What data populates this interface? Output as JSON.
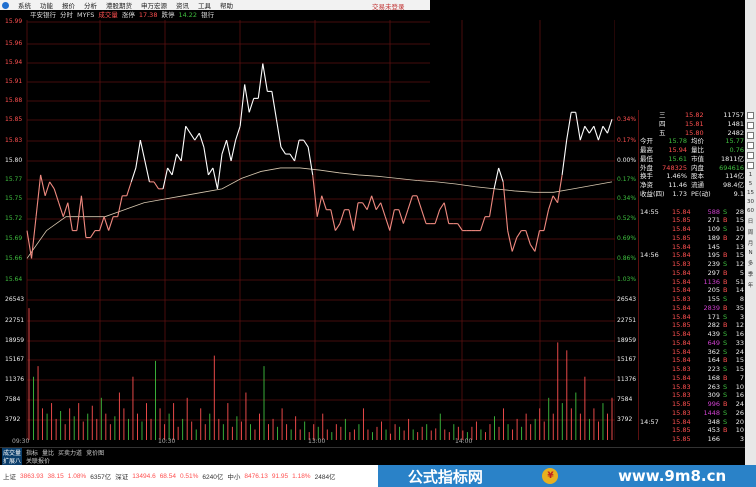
{
  "menu": {
    "items": [
      "系统",
      "功能",
      "报价",
      "分析",
      "港股期货",
      "申万宏源",
      "资讯",
      "工具",
      "帮助"
    ],
    "account_status": "交易未登录"
  },
  "header": {
    "stock": "平安银行",
    "mode": "分时",
    "indicator": "MYFS",
    "vol_label": "成交量",
    "limit_up_label": "涨停",
    "limit_up": "17.38",
    "limit_down_label": "跌停",
    "limit_down": "14.22",
    "sector": "银行"
  },
  "colors": {
    "up": "#ff5050",
    "down": "#3fbf3f",
    "grid": "#5a1010",
    "price_line_up": "#ffffff",
    "price_line_down": "#f08a80",
    "avg_line": "#d8c8b0"
  },
  "axis": {
    "price_labels": [
      {
        "t": "15.99",
        "c": "red"
      },
      {
        "t": "15.96",
        "c": "red"
      },
      {
        "t": "15.94",
        "c": "red"
      },
      {
        "t": "15.91",
        "c": "red"
      },
      {
        "t": "15.88",
        "c": "red"
      },
      {
        "t": "15.85",
        "c": "red"
      },
      {
        "t": "15.83",
        "c": "red"
      },
      {
        "t": "15.80",
        "c": "wht"
      },
      {
        "t": "15.77",
        "c": "green"
      },
      {
        "t": "15.75",
        "c": "green"
      },
      {
        "t": "15.72",
        "c": "green"
      },
      {
        "t": "15.69",
        "c": "green"
      },
      {
        "t": "15.66",
        "c": "green"
      },
      {
        "t": "15.64",
        "c": "green"
      }
    ],
    "pct_labels": [
      {
        "t": "0.34%",
        "c": "red"
      },
      {
        "t": "0.17%",
        "c": "red"
      },
      {
        "t": "0.00%",
        "c": "wht"
      },
      {
        "t": "0.17%",
        "c": "green"
      },
      {
        "t": "0.34%",
        "c": "green"
      },
      {
        "t": "0.52%",
        "c": "green"
      },
      {
        "t": "0.69%",
        "c": "green"
      },
      {
        "t": "0.86%",
        "c": "green"
      },
      {
        "t": "1.03%",
        "c": "green"
      }
    ],
    "vol_labels": [
      "26543",
      "22751",
      "18959",
      "15167",
      "11376",
      "7584",
      "3792"
    ],
    "time_labels": [
      "09:30",
      "10:30",
      "13:00",
      "14:00"
    ]
  },
  "chart_data": {
    "type": "line",
    "prev_close": 15.8,
    "price": [
      15.7,
      15.66,
      15.72,
      15.78,
      15.75,
      15.77,
      15.76,
      15.74,
      15.72,
      15.74,
      15.7,
      15.7,
      15.75,
      15.69,
      15.69,
      15.7,
      15.7,
      15.72,
      15.7,
      15.72,
      15.72,
      15.75,
      15.75,
      15.77,
      15.79,
      15.83,
      15.8,
      15.77,
      15.77,
      15.76,
      15.76,
      15.79,
      15.78,
      15.81,
      15.8,
      15.85,
      15.84,
      15.83,
      15.84,
      15.82,
      15.78,
      15.79,
      15.76,
      15.81,
      15.83,
      15.8,
      15.83,
      15.85,
      15.91,
      15.87,
      15.89,
      15.89,
      15.94,
      15.9,
      15.9,
      15.86,
      15.82,
      15.81,
      15.81,
      15.8,
      15.83,
      15.83,
      15.82,
      15.78,
      15.72,
      15.75,
      15.73,
      15.73,
      15.7,
      15.71,
      15.73,
      15.73,
      15.7,
      15.74,
      15.74,
      15.73,
      15.75,
      15.73,
      15.74,
      15.72,
      15.7,
      15.73,
      15.73,
      15.71,
      15.73,
      15.75,
      15.75,
      15.73,
      15.71,
      15.71,
      15.71,
      15.73,
      15.74,
      15.71,
      15.71,
      15.71,
      15.7,
      15.7,
      15.7,
      15.7,
      15.7,
      15.72,
      15.72,
      15.76,
      15.79,
      15.77,
      15.7,
      15.67,
      15.69,
      15.7,
      15.7,
      15.68,
      15.67,
      15.7,
      15.7,
      15.73,
      15.75,
      15.74,
      15.78,
      15.83,
      15.87,
      15.87,
      15.83,
      15.85,
      15.84,
      15.85,
      15.83,
      15.85,
      15.84,
      15.86
    ],
    "avg_price": [
      15.66,
      15.7,
      15.72,
      15.72,
      15.72,
      15.73,
      15.74,
      15.745,
      15.75,
      15.755,
      15.76,
      15.775,
      15.785,
      15.79,
      15.79,
      15.787,
      15.783,
      15.78,
      15.778,
      15.775,
      15.772,
      15.77,
      15.767,
      15.763,
      15.76,
      15.757,
      15.755,
      15.755,
      15.76,
      15.765,
      15.77
    ],
    "volume": [
      25000,
      12000,
      14000,
      6000,
      5000,
      7000,
      4000,
      5500,
      3000,
      6000,
      4500,
      7000,
      3500,
      5000,
      6500,
      4000,
      8000,
      5000,
      3000,
      4500,
      9000,
      6000,
      4000,
      12000,
      5000,
      3500,
      7000,
      4000,
      15000,
      6000,
      3000,
      5000,
      7000,
      2500,
      4000,
      8000,
      3500,
      2000,
      6000,
      3000,
      5000,
      16000,
      4000,
      3000,
      7000,
      2500,
      4500,
      3500,
      9000,
      3000,
      2000,
      5000,
      14000,
      3000,
      4000,
      2500,
      6000,
      3000,
      2000,
      4500,
      2000,
      3500,
      1500,
      3000,
      2500,
      5000,
      2000,
      1500,
      3000,
      2500,
      4000,
      1500,
      2000,
      3000,
      6000,
      2000,
      1500,
      2500,
      3500,
      2000,
      1200,
      3000,
      2500,
      1800,
      4000,
      2000,
      1500,
      2500,
      3000,
      1800,
      2200,
      5000,
      2000,
      1500,
      3000,
      2500,
      1800,
      1500,
      2500,
      3500,
      2000,
      1500,
      3000,
      4500,
      2500,
      6000,
      3000,
      2000,
      4000,
      2500,
      5000,
      3000,
      4000,
      6000,
      3500,
      8000,
      5000,
      18500,
      7000,
      17000,
      6000,
      9000,
      5000,
      12000,
      4000,
      6000,
      3500,
      7000,
      5000,
      8000
    ]
  },
  "quote": {
    "book": [
      {
        "k": "三",
        "p": "15.82",
        "v": "11757"
      },
      {
        "k": "四",
        "p": "15.81",
        "v": "1481"
      },
      {
        "k": "五",
        "p": "15.80",
        "v": "2482"
      }
    ],
    "stats": [
      {
        "a": "今开",
        "av": "15.78",
        "ac": "green",
        "b": "均价",
        "bv": "15.77",
        "bc": "green"
      },
      {
        "a": "最高",
        "av": "15.94",
        "ac": "red",
        "b": "量比",
        "bv": "0.76",
        "bc": "green"
      },
      {
        "a": "最低",
        "av": "15.61",
        "ac": "green",
        "b": "市值",
        "bv": "1811亿",
        "bc": "wht"
      },
      {
        "a": "外盘",
        "av": "748325",
        "ac": "red",
        "b": "内盘",
        "bv": "694616",
        "bc": "green"
      },
      {
        "a": "换手",
        "av": "1.46%",
        "ac": "wht",
        "b": "股本",
        "bv": "114亿",
        "bc": "wht"
      },
      {
        "a": "净资",
        "av": "11.46",
        "ac": "wht",
        "b": "流通",
        "bv": "98.4亿",
        "bc": "wht"
      },
      {
        "a": "收益(四)",
        "av": "1.73",
        "ac": "wht",
        "b": "PE(动)",
        "bv": "9.1",
        "bc": "wht"
      }
    ],
    "ticks": [
      {
        "t": "14:55",
        "p": "15.84",
        "pc": "red",
        "v": "588",
        "vc": "pur",
        "s": "S",
        "n": "28"
      },
      {
        "t": "",
        "p": "15.85",
        "pc": "red",
        "v": "271",
        "vc": "wht",
        "s": "B",
        "n": "15"
      },
      {
        "t": "",
        "p": "15.84",
        "pc": "red",
        "v": "109",
        "vc": "wht",
        "s": "S",
        "n": "10"
      },
      {
        "t": "",
        "p": "15.85",
        "pc": "red",
        "v": "189",
        "vc": "wht",
        "s": "B",
        "n": "27"
      },
      {
        "t": "",
        "p": "15.84",
        "pc": "red",
        "v": "145",
        "vc": "wht",
        "s": "",
        "n": "13"
      },
      {
        "t": "14:56",
        "p": "15.84",
        "pc": "red",
        "v": "195",
        "vc": "wht",
        "s": "B",
        "n": "15"
      },
      {
        "t": "",
        "p": "15.83",
        "pc": "red",
        "v": "239",
        "vc": "wht",
        "s": "S",
        "n": "12"
      },
      {
        "t": "",
        "p": "15.84",
        "pc": "red",
        "v": "297",
        "vc": "wht",
        "s": "B",
        "n": "5"
      },
      {
        "t": "",
        "p": "15.84",
        "pc": "red",
        "v": "1136",
        "vc": "pur",
        "s": "B",
        "n": "51"
      },
      {
        "t": "",
        "p": "15.84",
        "pc": "red",
        "v": "205",
        "vc": "wht",
        "s": "B",
        "n": "14"
      },
      {
        "t": "",
        "p": "15.83",
        "pc": "red",
        "v": "155",
        "vc": "wht",
        "s": "S",
        "n": "8"
      },
      {
        "t": "",
        "p": "15.84",
        "pc": "red",
        "v": "2839",
        "vc": "pur",
        "s": "B",
        "n": "35"
      },
      {
        "t": "",
        "p": "15.84",
        "pc": "red",
        "v": "171",
        "vc": "wht",
        "s": "S",
        "n": "3"
      },
      {
        "t": "",
        "p": "15.85",
        "pc": "red",
        "v": "282",
        "vc": "wht",
        "s": "B",
        "n": "12"
      },
      {
        "t": "",
        "p": "15.84",
        "pc": "red",
        "v": "439",
        "vc": "wht",
        "s": "S",
        "n": "16"
      },
      {
        "t": "",
        "p": "15.84",
        "pc": "red",
        "v": "649",
        "vc": "pur",
        "s": "S",
        "n": "33"
      },
      {
        "t": "",
        "p": "15.84",
        "pc": "red",
        "v": "362",
        "vc": "wht",
        "s": "S",
        "n": "24"
      },
      {
        "t": "",
        "p": "15.84",
        "pc": "red",
        "v": "164",
        "vc": "wht",
        "s": "B",
        "n": "15"
      },
      {
        "t": "",
        "p": "15.83",
        "pc": "red",
        "v": "223",
        "vc": "wht",
        "s": "S",
        "n": "15"
      },
      {
        "t": "",
        "p": "15.84",
        "pc": "red",
        "v": "168",
        "vc": "wht",
        "s": "B",
        "n": "7"
      },
      {
        "t": "",
        "p": "15.83",
        "pc": "red",
        "v": "263",
        "vc": "wht",
        "s": "S",
        "n": "10"
      },
      {
        "t": "",
        "p": "15.83",
        "pc": "red",
        "v": "309",
        "vc": "wht",
        "s": "S",
        "n": "16"
      },
      {
        "t": "",
        "p": "15.85",
        "pc": "red",
        "v": "996",
        "vc": "pur",
        "s": "B",
        "n": "24"
      },
      {
        "t": "",
        "p": "15.83",
        "pc": "red",
        "v": "1448",
        "vc": "pur",
        "s": "S",
        "n": "26"
      },
      {
        "t": "14:57",
        "p": "15.84",
        "pc": "red",
        "v": "348",
        "vc": "wht",
        "s": "S",
        "n": "20"
      },
      {
        "t": "",
        "p": "15.85",
        "pc": "red",
        "v": "453",
        "vc": "wht",
        "s": "B",
        "n": "10"
      },
      {
        "t": "",
        "p": "15.85",
        "pc": "red",
        "v": "166",
        "vc": "wht",
        "s": "",
        "n": "3"
      }
    ]
  },
  "period_buttons": [
    "1",
    "5",
    "15",
    "30",
    "60",
    "日",
    "周",
    "月",
    "N",
    "多",
    "季",
    "年"
  ],
  "tabs": {
    "row1": [
      "成交量",
      "指标",
      "量比",
      "买卖力道",
      "竞价图"
    ],
    "row2": [
      "扩展八",
      "关联报价"
    ]
  },
  "status": [
    {
      "name": "上证",
      "v": "3863.93",
      "chg": "38.15",
      "pct": "1.08%",
      "amt": "6357亿"
    },
    {
      "name": "深证",
      "v": "13494.6",
      "chg": "68.54",
      "pct": "0.51%",
      "amt": "6240亿"
    },
    {
      "name": "中小",
      "v": "8476.13",
      "chg": "91.95",
      "pct": "1.18%",
      "amt": "2484亿"
    }
  ],
  "watermark": {
    "title": "公式指标网",
    "url": "www.9m8.cn",
    "coin": "¥"
  }
}
